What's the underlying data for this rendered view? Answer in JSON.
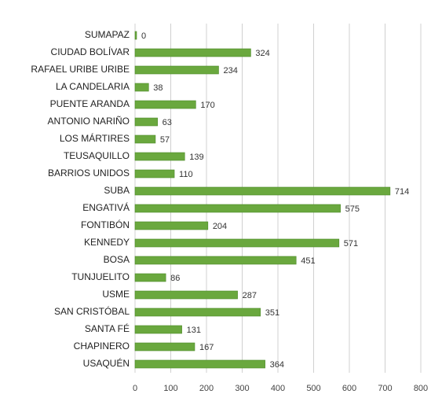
{
  "chart_data": {
    "type": "bar",
    "orientation": "horizontal",
    "categories": [
      "SUMAPAZ",
      "CIUDAD BOLÍVAR",
      "RAFAEL URIBE URIBE",
      "LA CANDELARIA",
      "PUENTE ARANDA",
      "ANTONIO NARIÑO",
      "LOS MÁRTIRES",
      "TEUSAQUILLO",
      "BARRIOS UNIDOS",
      "SUBA",
      "ENGATIVÁ",
      "FONTIBÓN",
      "KENNEDY",
      "BOSA",
      "TUNJUELITO",
      "USME",
      "SAN CRISTÓBAL",
      "SANTA FÉ",
      "CHAPINERO",
      "USAQUÉN"
    ],
    "values": [
      0,
      324,
      234,
      38,
      170,
      63,
      57,
      139,
      110,
      714,
      575,
      204,
      571,
      451,
      86,
      287,
      351,
      131,
      167,
      364
    ],
    "color": "#6aa83e",
    "xlim": [
      0,
      800
    ],
    "xticks": [
      0,
      100,
      200,
      300,
      400,
      500,
      600,
      700,
      800
    ],
    "grid": true
  }
}
